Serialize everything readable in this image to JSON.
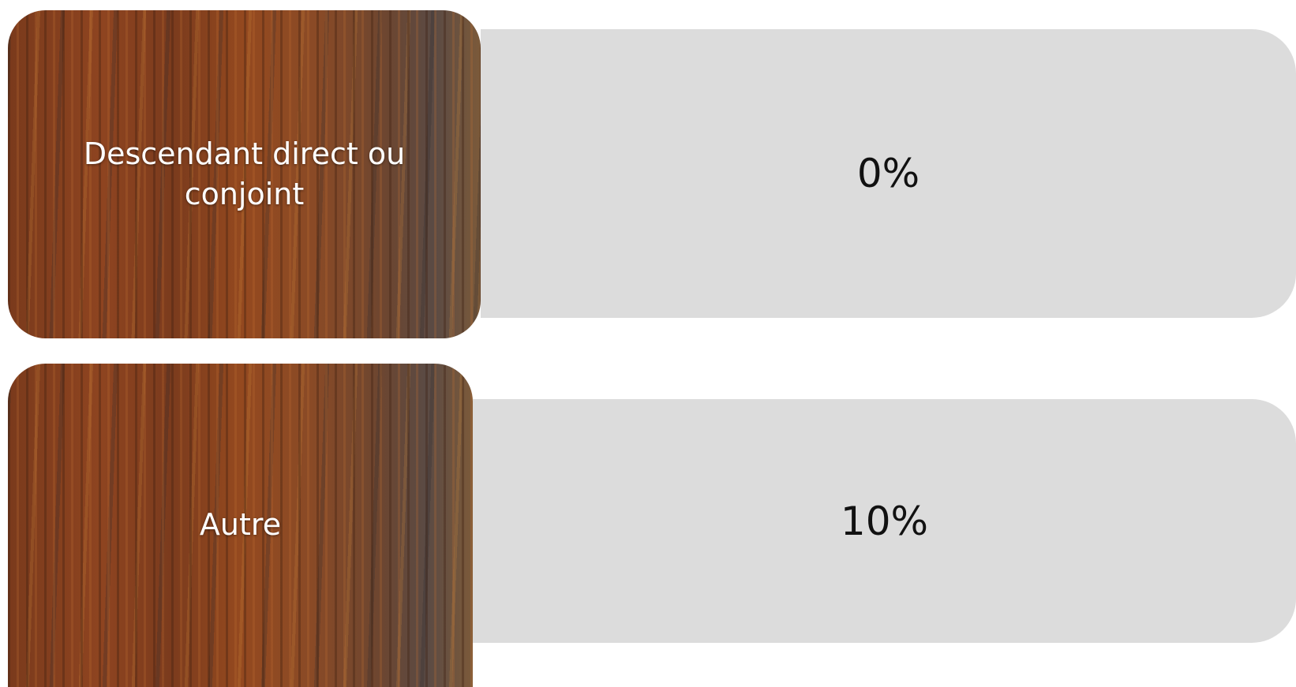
{
  "rows": [
    {
      "label": "Descendant direct ou conjoint",
      "value": "0%"
    },
    {
      "label": "Autre",
      "value": "10%"
    }
  ]
}
